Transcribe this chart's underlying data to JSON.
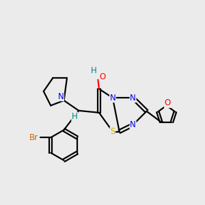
{
  "bg_color": "#ebebeb",
  "atom_colors": {
    "C": "#000000",
    "N": "#0000ee",
    "O": "#ff0000",
    "S": "#ccaa00",
    "Br": "#cc6600",
    "H_teal": "#008080"
  },
  "bond_color": "#000000",
  "bond_width": 1.6,
  "figsize": [
    3.0,
    3.0
  ],
  "dpi": 100
}
